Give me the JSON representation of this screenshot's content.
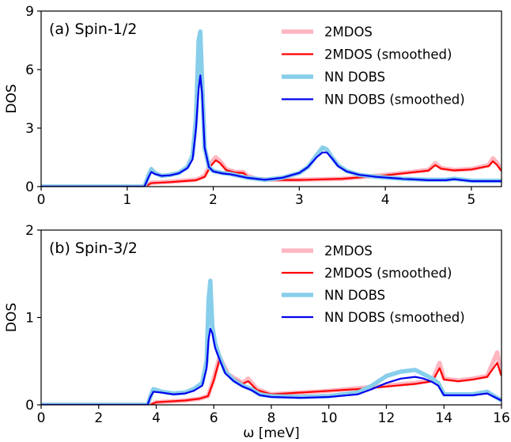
{
  "chart_data": [
    {
      "type": "line",
      "title": "(a) Spin-1/2",
      "ylabel": "DOS",
      "xlabel": "",
      "xlim": [
        0,
        5.35
      ],
      "ylim": [
        0,
        9
      ],
      "xticks": [
        "0",
        "1",
        "2",
        "3",
        "4",
        "5"
      ],
      "yticks": [
        "0",
        "3",
        "6",
        "9"
      ],
      "grid": false,
      "legend_position": "top-right",
      "series": [
        {
          "name": "2MDOS",
          "color": "#ffb6c1",
          "x": [
            0,
            1.2,
            1.28,
            1.5,
            1.8,
            1.9,
            1.97,
            2.03,
            2.08,
            2.15,
            2.25,
            2.35,
            2.4,
            2.5,
            2.7,
            3.0,
            3.5,
            4.0,
            4.5,
            4.58,
            4.65,
            4.8,
            5.0,
            5.2,
            5.25,
            5.3,
            5.35
          ],
          "y": [
            0,
            0,
            0.2,
            0.25,
            0.35,
            0.55,
            1.2,
            1.5,
            1.3,
            0.9,
            0.75,
            0.75,
            0.55,
            0.4,
            0.35,
            0.35,
            0.4,
            0.6,
            0.85,
            1.2,
            0.95,
            0.85,
            0.9,
            1.1,
            1.45,
            1.2,
            0.85
          ]
        },
        {
          "name": "2MDOS (smoothed)",
          "color": "#ff0000",
          "x": [
            0,
            1.2,
            1.28,
            1.5,
            1.8,
            1.9,
            1.97,
            2.03,
            2.08,
            2.15,
            2.25,
            2.35,
            2.4,
            2.5,
            2.7,
            3.0,
            3.5,
            4.0,
            4.5,
            4.58,
            4.65,
            4.8,
            5.0,
            5.2,
            5.25,
            5.3,
            5.35
          ],
          "y": [
            0,
            0,
            0.18,
            0.23,
            0.33,
            0.5,
            1.05,
            1.35,
            1.2,
            0.85,
            0.72,
            0.7,
            0.52,
            0.38,
            0.34,
            0.34,
            0.4,
            0.58,
            0.82,
            1.1,
            0.92,
            0.83,
            0.88,
            1.05,
            1.3,
            1.1,
            0.8
          ]
        },
        {
          "name": "NN DOBS",
          "color": "#87ceeb",
          "x": [
            0,
            1.2,
            1.25,
            1.28,
            1.32,
            1.4,
            1.5,
            1.6,
            1.7,
            1.76,
            1.8,
            1.83,
            1.85,
            1.87,
            1.9,
            1.95,
            2.0,
            2.1,
            2.2,
            2.4,
            2.6,
            2.8,
            3.0,
            3.1,
            3.2,
            3.27,
            3.32,
            3.38,
            3.45,
            3.55,
            3.7,
            3.9,
            4.2,
            4.5,
            4.7,
            4.8,
            5.0,
            5.35
          ],
          "y": [
            0,
            0,
            0.6,
            0.9,
            0.7,
            0.55,
            0.6,
            0.7,
            1.0,
            1.6,
            3.5,
            7.5,
            7.95,
            5.5,
            2.0,
            1.0,
            0.8,
            0.7,
            0.65,
            0.45,
            0.35,
            0.45,
            0.7,
            1.0,
            1.6,
            2.0,
            1.9,
            1.5,
            1.1,
            0.8,
            0.6,
            0.5,
            0.4,
            0.35,
            0.35,
            0.4,
            0.3,
            0.3
          ]
        },
        {
          "name": "NN DOBS (smoothed)",
          "color": "#0000ee",
          "x": [
            0,
            1.2,
            1.25,
            1.28,
            1.32,
            1.4,
            1.5,
            1.6,
            1.7,
            1.76,
            1.8,
            1.83,
            1.85,
            1.87,
            1.9,
            1.95,
            2.0,
            2.1,
            2.2,
            2.4,
            2.6,
            2.8,
            3.0,
            3.1,
            3.2,
            3.27,
            3.32,
            3.38,
            3.45,
            3.55,
            3.7,
            3.9,
            4.2,
            4.5,
            4.7,
            4.8,
            5.0,
            5.35
          ],
          "y": [
            0,
            0,
            0.5,
            0.75,
            0.65,
            0.55,
            0.58,
            0.68,
            0.95,
            1.4,
            3.0,
            5.0,
            5.7,
            4.8,
            2.0,
            1.0,
            0.78,
            0.68,
            0.63,
            0.45,
            0.35,
            0.45,
            0.7,
            1.0,
            1.5,
            1.75,
            1.75,
            1.45,
            1.05,
            0.78,
            0.6,
            0.5,
            0.4,
            0.33,
            0.33,
            0.38,
            0.28,
            0.28
          ]
        }
      ]
    },
    {
      "type": "line",
      "title": "(b) Spin-3/2",
      "ylabel": "DOS",
      "xlabel": "ω [meV]",
      "xlim": [
        0,
        16
      ],
      "ylim": [
        0,
        2
      ],
      "xticks": [
        "0",
        "2",
        "4",
        "6",
        "8",
        "10",
        "12",
        "14",
        "16"
      ],
      "yticks": [
        "0",
        "1",
        "2"
      ],
      "grid": false,
      "legend_position": "top-right",
      "series": [
        {
          "name": "2MDOS",
          "color": "#ffb6c1",
          "x": [
            0,
            3.8,
            4.0,
            5.0,
            5.5,
            5.8,
            6.0,
            6.2,
            6.5,
            7.0,
            7.2,
            7.5,
            8.0,
            9.0,
            10.0,
            11.0,
            12.0,
            13.0,
            13.6,
            13.85,
            14.0,
            14.5,
            15.0,
            15.5,
            15.85,
            16.0
          ],
          "y": [
            0,
            0,
            0.03,
            0.05,
            0.07,
            0.1,
            0.3,
            0.55,
            0.35,
            0.25,
            0.3,
            0.18,
            0.12,
            0.14,
            0.16,
            0.19,
            0.22,
            0.25,
            0.28,
            0.48,
            0.3,
            0.28,
            0.3,
            0.33,
            0.6,
            0.35
          ]
        },
        {
          "name": "2MDOS (smoothed)",
          "color": "#ff0000",
          "x": [
            0,
            3.8,
            4.0,
            5.0,
            5.5,
            5.8,
            6.0,
            6.2,
            6.5,
            7.0,
            7.2,
            7.5,
            8.0,
            9.0,
            10.0,
            11.0,
            12.0,
            13.0,
            13.6,
            13.85,
            14.0,
            14.5,
            15.0,
            15.5,
            15.85,
            16.0
          ],
          "y": [
            0,
            0,
            0.03,
            0.05,
            0.07,
            0.1,
            0.28,
            0.52,
            0.34,
            0.24,
            0.27,
            0.17,
            0.12,
            0.14,
            0.16,
            0.18,
            0.21,
            0.24,
            0.27,
            0.42,
            0.29,
            0.27,
            0.29,
            0.32,
            0.48,
            0.33
          ]
        },
        {
          "name": "NN DOBS",
          "color": "#87ceeb",
          "x": [
            0,
            3.7,
            3.8,
            3.9,
            4.2,
            4.6,
            5.0,
            5.3,
            5.6,
            5.75,
            5.82,
            5.88,
            5.95,
            6.05,
            6.2,
            6.4,
            6.7,
            7.0,
            7.3,
            7.6,
            8.0,
            9.0,
            10.0,
            11.0,
            11.5,
            12.0,
            12.5,
            13.0,
            13.3,
            13.6,
            13.8,
            14.0,
            15.0,
            15.5,
            16.0
          ],
          "y": [
            0,
            0,
            0.1,
            0.18,
            0.15,
            0.13,
            0.14,
            0.18,
            0.25,
            0.5,
            1.2,
            1.42,
            0.9,
            0.7,
            0.55,
            0.38,
            0.28,
            0.22,
            0.18,
            0.12,
            0.1,
            0.09,
            0.1,
            0.14,
            0.22,
            0.33,
            0.38,
            0.4,
            0.35,
            0.3,
            0.25,
            0.12,
            0.12,
            0.15,
            0.05
          ]
        },
        {
          "name": "NN DOBS (smoothed)",
          "color": "#0000ee",
          "x": [
            0,
            3.7,
            3.8,
            3.9,
            4.2,
            4.6,
            5.0,
            5.3,
            5.6,
            5.75,
            5.82,
            5.88,
            5.95,
            6.05,
            6.2,
            6.4,
            6.7,
            7.0,
            7.3,
            7.6,
            8.0,
            9.0,
            10.0,
            11.0,
            11.5,
            12.0,
            12.5,
            13.0,
            13.3,
            13.6,
            13.8,
            14.0,
            15.0,
            15.5,
            16.0
          ],
          "y": [
            0,
            0,
            0.09,
            0.15,
            0.14,
            0.12,
            0.13,
            0.16,
            0.22,
            0.42,
            0.75,
            0.87,
            0.82,
            0.65,
            0.52,
            0.36,
            0.27,
            0.21,
            0.17,
            0.11,
            0.09,
            0.08,
            0.09,
            0.12,
            0.18,
            0.25,
            0.3,
            0.32,
            0.3,
            0.26,
            0.22,
            0.11,
            0.11,
            0.13,
            0.05
          ]
        }
      ]
    }
  ]
}
